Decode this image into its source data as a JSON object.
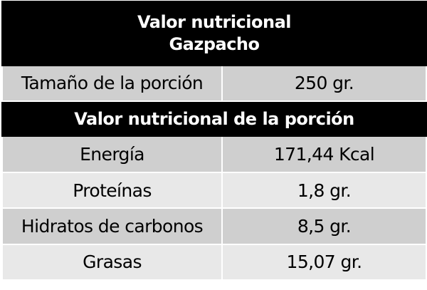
{
  "title": {
    "line1": "Valor nutricional",
    "line2": "Gazpacho"
  },
  "serving": {
    "label": "Tamaño de la porción",
    "value": "250 gr."
  },
  "section_header": "Valor nutricional de la porción",
  "nutrients": [
    {
      "label": "Energía",
      "value": "171,44 Kcal"
    },
    {
      "label": "Proteínas",
      "value": "1,8 gr."
    },
    {
      "label": "Hidratos de carbonos",
      "value": "8,5 gr."
    },
    {
      "label": "Grasas",
      "value": "15,07 gr."
    }
  ],
  "colors": {
    "header_bg": "#000000",
    "header_text": "#ffffff",
    "row_dark": "#cfcfcf",
    "row_light": "#e8e8e8"
  }
}
